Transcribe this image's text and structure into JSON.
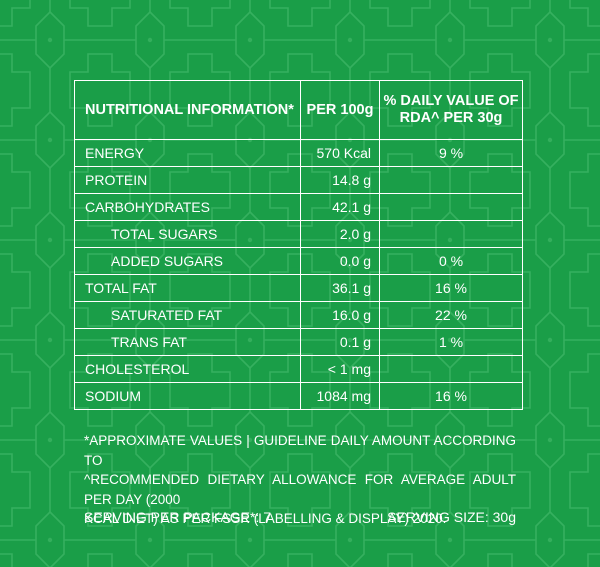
{
  "colors": {
    "background": "#1a9e48",
    "pattern": "#3db566",
    "text": "#ffffff"
  },
  "table": {
    "headers": {
      "name": "NUTRITIONAL INFORMATION*",
      "per100": "PER 100g",
      "dv_line1": "% DAILY VALUE OF",
      "dv_line2": "RDA^ PER 30g"
    },
    "rows": [
      {
        "name": "ENERGY",
        "value": "570 Kcal",
        "dv": "9 %"
      },
      {
        "name": "PROTEIN",
        "value": "14.8 g",
        "dv": ""
      },
      {
        "name": "CARBOHYDRATES",
        "value": "42.1 g",
        "dv": ""
      },
      {
        "name": "TOTAL SUGARS",
        "value": "2.0 g",
        "dv": ""
      },
      {
        "name": "ADDED SUGARS",
        "value": "0.0 g",
        "dv": "0 %"
      },
      {
        "name": "TOTAL FAT",
        "value": "36.1 g",
        "dv": "16 %"
      },
      {
        "name": "SATURATED FAT",
        "value": "16.0 g",
        "dv": "22 %"
      },
      {
        "name": "TRANS FAT",
        "value": "0.1 g",
        "dv": "1 %"
      },
      {
        "name": "CHOLESTEROL",
        "value": "< 1 mg",
        "dv": ""
      },
      {
        "name": "SODIUM",
        "value": "1084 mg",
        "dv": "16 %"
      }
    ]
  },
  "footnote": {
    "line1": "*APPROXIMATE VALUES | GUIDELINE DAILY AMOUNT ACCORDING TO",
    "line2": "^RECOMMENDED DIETARY ALLOWANCE FOR AVERAGE ADULT PER DAY (2000",
    "line3": "KCAL DIET) AS PER FSSR (LABELLING & DISPLAY) 2020."
  },
  "serving": {
    "per_package": "SERVING PER PACKAGE*: 7",
    "size": "SERVING SIZE: 30g"
  }
}
